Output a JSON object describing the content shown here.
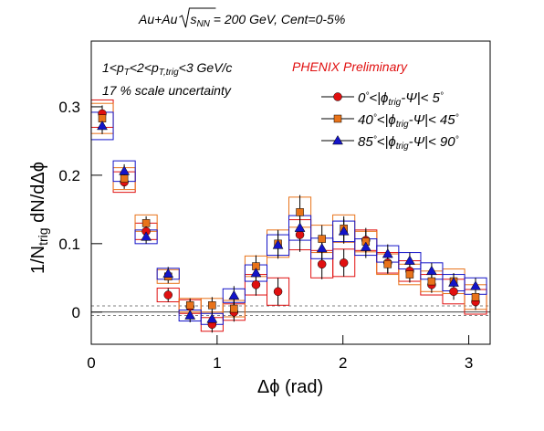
{
  "chart_data": {
    "type": "errorbar",
    "title": [
      "Au+Au",
      "s",
      "NN",
      " = 200 GeV, Cent=0-5%"
    ],
    "annotations": [
      [
        "1<p",
        "T",
        "<2<p",
        "T,trig",
        "<3 GeV/c"
      ],
      [
        "17 % scale uncertainty"
      ]
    ],
    "watermark": "PHENIX Preliminary",
    "xlabel": "Δϕ (rad)",
    "ylabel": [
      "1/N",
      "trig",
      " dN/dΔϕ"
    ],
    "x": [
      0.087,
      0.262,
      0.436,
      0.611,
      0.785,
      0.96,
      1.134,
      1.309,
      1.484,
      1.658,
      1.833,
      2.007,
      2.182,
      2.356,
      2.531,
      2.705,
      2.88,
      3.054
    ],
    "series": [
      {
        "name": [
          "0",
          "°",
          "<|ϕ",
          "trig",
          "-Ψ|< 5",
          "°"
        ],
        "color": "#e01010",
        "marker": "circle",
        "values": [
          0.29,
          0.19,
          0.118,
          0.025,
          0.008,
          -0.018,
          0.0,
          0.04,
          0.03,
          0.113,
          0.07,
          0.072,
          0.105,
          0.072,
          0.06,
          0.04,
          0.03,
          0.015
        ],
        "errors": [
          0.012,
          0.01,
          0.01,
          0.01,
          0.01,
          0.012,
          0.014,
          0.016,
          0.02,
          0.025,
          0.022,
          0.02,
          0.018,
          0.015,
          0.013,
          0.012,
          0.012,
          0.012
        ],
        "sys_errors": [
          0.02,
          0.015,
          0.012,
          0.01,
          0.01,
          0.01,
          0.012,
          0.015,
          0.02,
          0.022,
          0.02,
          0.02,
          0.015,
          0.015,
          0.015,
          0.015,
          0.018,
          0.018
        ]
      },
      {
        "name": [
          "40",
          "°",
          "<|ϕ",
          "trig",
          "-Ψ|< 45",
          "°"
        ],
        "color": "#e8731a",
        "marker": "square",
        "values": [
          0.283,
          0.195,
          0.13,
          0.052,
          0.01,
          0.01,
          0.005,
          0.067,
          0.1,
          0.146,
          0.107,
          0.122,
          0.103,
          0.07,
          0.055,
          0.045,
          0.045,
          0.022
        ],
        "errors": [
          0.012,
          0.01,
          0.01,
          0.01,
          0.01,
          0.012,
          0.014,
          0.016,
          0.02,
          0.025,
          0.02,
          0.018,
          0.016,
          0.014,
          0.012,
          0.012,
          0.012,
          0.012
        ],
        "sys_errors": [
          0.022,
          0.016,
          0.012,
          0.01,
          0.01,
          0.01,
          0.012,
          0.015,
          0.02,
          0.022,
          0.02,
          0.02,
          0.015,
          0.015,
          0.015,
          0.015,
          0.018,
          0.018
        ]
      },
      {
        "name": [
          "85",
          "°",
          "<|ϕ",
          "trig",
          "-Ψ|< 90",
          "°"
        ],
        "color": "#1414c8",
        "marker": "triangle",
        "values": [
          0.272,
          0.206,
          0.11,
          0.056,
          -0.005,
          -0.01,
          0.024,
          0.057,
          0.098,
          0.123,
          0.093,
          0.118,
          0.095,
          0.085,
          0.075,
          0.06,
          0.043,
          0.038
        ],
        "errors": [
          0.012,
          0.01,
          0.01,
          0.01,
          0.01,
          0.012,
          0.014,
          0.016,
          0.02,
          0.022,
          0.02,
          0.018,
          0.016,
          0.014,
          0.012,
          0.012,
          0.012,
          0.012
        ],
        "sys_errors": [
          0.02,
          0.015,
          0.01,
          0.008,
          0.008,
          0.008,
          0.01,
          0.012,
          0.015,
          0.018,
          0.015,
          0.015,
          0.012,
          0.012,
          0.012,
          0.012,
          0.012,
          0.012
        ]
      }
    ],
    "hlines": [
      {
        "value": 0,
        "style": "solid"
      },
      {
        "value": 0.009,
        "style": "dashed"
      },
      {
        "value": -0.005,
        "style": "dashed"
      }
    ],
    "xlim": [
      0,
      3.17
    ],
    "ylim": [
      -0.047,
      0.396
    ],
    "xticks": [
      0,
      1,
      2,
      3
    ],
    "yticks": [
      0,
      0.1,
      0.2,
      0.3
    ]
  }
}
